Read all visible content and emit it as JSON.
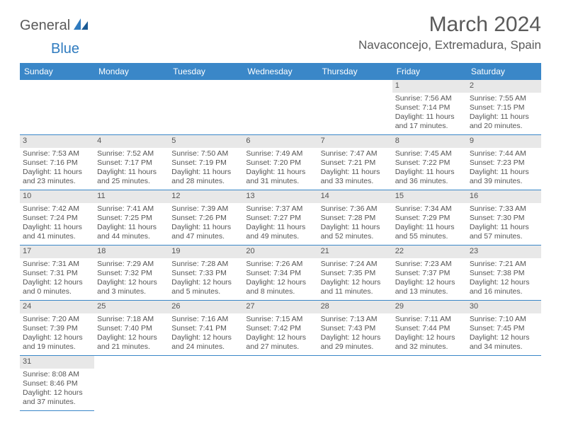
{
  "logo": {
    "general": "General",
    "blue": "Blue"
  },
  "header": {
    "title": "March 2024",
    "location": "Navaconcejo, Extremadura, Spain"
  },
  "day_names": [
    "Sunday",
    "Monday",
    "Tuesday",
    "Wednesday",
    "Thursday",
    "Friday",
    "Saturday"
  ],
  "calendar": {
    "first_weekday": 5,
    "cols": 7,
    "rows": 6,
    "days": [
      {
        "n": "1",
        "sunrise": "Sunrise: 7:56 AM",
        "sunset": "Sunset: 7:14 PM",
        "daylight": "Daylight: 11 hours and 17 minutes."
      },
      {
        "n": "2",
        "sunrise": "Sunrise: 7:55 AM",
        "sunset": "Sunset: 7:15 PM",
        "daylight": "Daylight: 11 hours and 20 minutes."
      },
      {
        "n": "3",
        "sunrise": "Sunrise: 7:53 AM",
        "sunset": "Sunset: 7:16 PM",
        "daylight": "Daylight: 11 hours and 23 minutes."
      },
      {
        "n": "4",
        "sunrise": "Sunrise: 7:52 AM",
        "sunset": "Sunset: 7:17 PM",
        "daylight": "Daylight: 11 hours and 25 minutes."
      },
      {
        "n": "5",
        "sunrise": "Sunrise: 7:50 AM",
        "sunset": "Sunset: 7:19 PM",
        "daylight": "Daylight: 11 hours and 28 minutes."
      },
      {
        "n": "6",
        "sunrise": "Sunrise: 7:49 AM",
        "sunset": "Sunset: 7:20 PM",
        "daylight": "Daylight: 11 hours and 31 minutes."
      },
      {
        "n": "7",
        "sunrise": "Sunrise: 7:47 AM",
        "sunset": "Sunset: 7:21 PM",
        "daylight": "Daylight: 11 hours and 33 minutes."
      },
      {
        "n": "8",
        "sunrise": "Sunrise: 7:45 AM",
        "sunset": "Sunset: 7:22 PM",
        "daylight": "Daylight: 11 hours and 36 minutes."
      },
      {
        "n": "9",
        "sunrise": "Sunrise: 7:44 AM",
        "sunset": "Sunset: 7:23 PM",
        "daylight": "Daylight: 11 hours and 39 minutes."
      },
      {
        "n": "10",
        "sunrise": "Sunrise: 7:42 AM",
        "sunset": "Sunset: 7:24 PM",
        "daylight": "Daylight: 11 hours and 41 minutes."
      },
      {
        "n": "11",
        "sunrise": "Sunrise: 7:41 AM",
        "sunset": "Sunset: 7:25 PM",
        "daylight": "Daylight: 11 hours and 44 minutes."
      },
      {
        "n": "12",
        "sunrise": "Sunrise: 7:39 AM",
        "sunset": "Sunset: 7:26 PM",
        "daylight": "Daylight: 11 hours and 47 minutes."
      },
      {
        "n": "13",
        "sunrise": "Sunrise: 7:37 AM",
        "sunset": "Sunset: 7:27 PM",
        "daylight": "Daylight: 11 hours and 49 minutes."
      },
      {
        "n": "14",
        "sunrise": "Sunrise: 7:36 AM",
        "sunset": "Sunset: 7:28 PM",
        "daylight": "Daylight: 11 hours and 52 minutes."
      },
      {
        "n": "15",
        "sunrise": "Sunrise: 7:34 AM",
        "sunset": "Sunset: 7:29 PM",
        "daylight": "Daylight: 11 hours and 55 minutes."
      },
      {
        "n": "16",
        "sunrise": "Sunrise: 7:33 AM",
        "sunset": "Sunset: 7:30 PM",
        "daylight": "Daylight: 11 hours and 57 minutes."
      },
      {
        "n": "17",
        "sunrise": "Sunrise: 7:31 AM",
        "sunset": "Sunset: 7:31 PM",
        "daylight": "Daylight: 12 hours and 0 minutes."
      },
      {
        "n": "18",
        "sunrise": "Sunrise: 7:29 AM",
        "sunset": "Sunset: 7:32 PM",
        "daylight": "Daylight: 12 hours and 3 minutes."
      },
      {
        "n": "19",
        "sunrise": "Sunrise: 7:28 AM",
        "sunset": "Sunset: 7:33 PM",
        "daylight": "Daylight: 12 hours and 5 minutes."
      },
      {
        "n": "20",
        "sunrise": "Sunrise: 7:26 AM",
        "sunset": "Sunset: 7:34 PM",
        "daylight": "Daylight: 12 hours and 8 minutes."
      },
      {
        "n": "21",
        "sunrise": "Sunrise: 7:24 AM",
        "sunset": "Sunset: 7:35 PM",
        "daylight": "Daylight: 12 hours and 11 minutes."
      },
      {
        "n": "22",
        "sunrise": "Sunrise: 7:23 AM",
        "sunset": "Sunset: 7:37 PM",
        "daylight": "Daylight: 12 hours and 13 minutes."
      },
      {
        "n": "23",
        "sunrise": "Sunrise: 7:21 AM",
        "sunset": "Sunset: 7:38 PM",
        "daylight": "Daylight: 12 hours and 16 minutes."
      },
      {
        "n": "24",
        "sunrise": "Sunrise: 7:20 AM",
        "sunset": "Sunset: 7:39 PM",
        "daylight": "Daylight: 12 hours and 19 minutes."
      },
      {
        "n": "25",
        "sunrise": "Sunrise: 7:18 AM",
        "sunset": "Sunset: 7:40 PM",
        "daylight": "Daylight: 12 hours and 21 minutes."
      },
      {
        "n": "26",
        "sunrise": "Sunrise: 7:16 AM",
        "sunset": "Sunset: 7:41 PM",
        "daylight": "Daylight: 12 hours and 24 minutes."
      },
      {
        "n": "27",
        "sunrise": "Sunrise: 7:15 AM",
        "sunset": "Sunset: 7:42 PM",
        "daylight": "Daylight: 12 hours and 27 minutes."
      },
      {
        "n": "28",
        "sunrise": "Sunrise: 7:13 AM",
        "sunset": "Sunset: 7:43 PM",
        "daylight": "Daylight: 12 hours and 29 minutes."
      },
      {
        "n": "29",
        "sunrise": "Sunrise: 7:11 AM",
        "sunset": "Sunset: 7:44 PM",
        "daylight": "Daylight: 12 hours and 32 minutes."
      },
      {
        "n": "30",
        "sunrise": "Sunrise: 7:10 AM",
        "sunset": "Sunset: 7:45 PM",
        "daylight": "Daylight: 12 hours and 34 minutes."
      },
      {
        "n": "31",
        "sunrise": "Sunrise: 8:08 AM",
        "sunset": "Sunset: 8:46 PM",
        "daylight": "Daylight: 12 hours and 37 minutes."
      }
    ]
  },
  "colors": {
    "header_bg": "#3a87c8",
    "header_text": "#ffffff",
    "daynum_bg": "#e8e8e8",
    "rule": "#3a87c8"
  }
}
